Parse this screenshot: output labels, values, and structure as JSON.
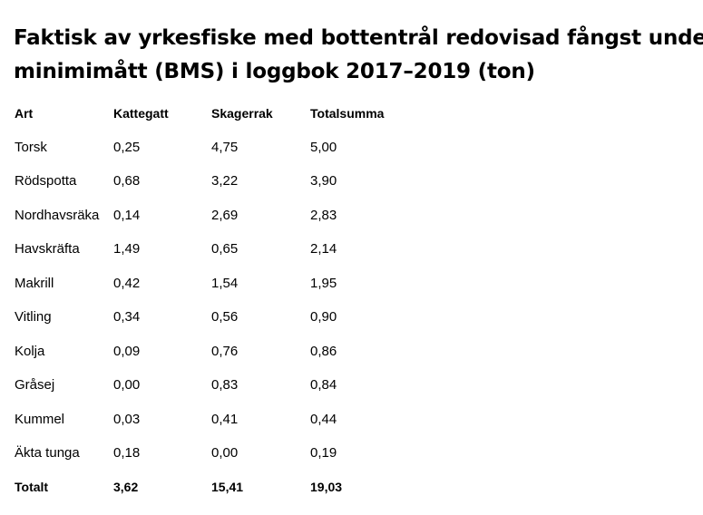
{
  "title": {
    "line1": "Faktisk av yrkesfiske med bottentrål redovisad fångst under",
    "line2": "minimimått (BMS) i loggbok 2017–2019 (ton)"
  },
  "table": {
    "headers": [
      "Art",
      "Kattegatt",
      "Skagerrak",
      "Totalsumma"
    ],
    "rows": [
      [
        "Torsk",
        "0,25",
        "4,75",
        "5,00"
      ],
      [
        "Rödspotta",
        "0,68",
        "3,22",
        "3,90"
      ],
      [
        "Nordhavsräka",
        "0,14",
        "2,69",
        "2,83"
      ],
      [
        "Havskräfta",
        "1,49",
        "0,65",
        "2,14"
      ],
      [
        "Makrill",
        "0,42",
        "1,54",
        "1,95"
      ],
      [
        "Vitling",
        "0,34",
        "0,56",
        "0,90"
      ],
      [
        "Kolja",
        "0,09",
        "0,76",
        "0,86"
      ],
      [
        "Gråsej",
        "0,00",
        "0,83",
        "0,84"
      ],
      [
        "Kummel",
        "0,03",
        "0,41",
        "0,44"
      ],
      [
        "Äkta tunga",
        "0,18",
        "0,00",
        "0,19"
      ]
    ],
    "total": [
      "Totalt",
      "3,62",
      "15,41",
      "19,03"
    ]
  }
}
